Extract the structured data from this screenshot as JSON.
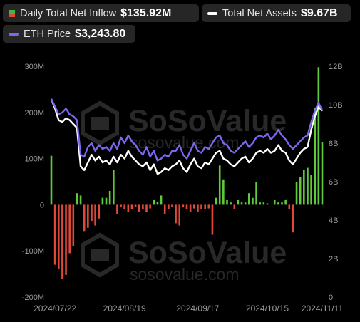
{
  "legend": {
    "inflow": {
      "label": "Daily Total Net Inflow",
      "value": "$135.92M",
      "swatch_top": "#3dba3d",
      "swatch_bottom": "#e0493a"
    },
    "assets": {
      "label": "Total Net Assets",
      "value": "$9.67B",
      "swatch": "#ffffff"
    },
    "eth": {
      "label": "ETH Price",
      "value": "$3,243.80",
      "swatch": "#7b68ee"
    }
  },
  "watermark": {
    "text": "SoSoValue",
    "url": "sosovalue.com"
  },
  "chart_data": {
    "type": "bar",
    "x_tick_labels": [
      "2024/07/22",
      "2024/08/19",
      "2024/09/17",
      "2024/10/15",
      "2024/11/11"
    ],
    "x_tick_indices": [
      1,
      20,
      40,
      59,
      77
    ],
    "y_left": {
      "ticks": [
        "300M",
        "200M",
        "100M",
        "0",
        "-100M",
        "-200M"
      ],
      "range": [
        -200,
        300
      ],
      "unit": "M"
    },
    "y_right": {
      "ticks": [
        "12B",
        "10B",
        "8B",
        "6B",
        "4B",
        "2B",
        "0"
      ],
      "range": [
        0,
        12
      ],
      "unit": "B"
    },
    "colors": {
      "positive": "#5fcb3c",
      "negative": "#e0493a",
      "net_assets": "#ffffff",
      "eth_price": "#7b68ee"
    },
    "series": [
      {
        "kind": "bar",
        "axis": "left",
        "values": [
          106,
          -130,
          -140,
          -160,
          -152,
          -105,
          -90,
          25,
          20,
          -57,
          -50,
          -35,
          -45,
          -30,
          15,
          15,
          30,
          75,
          -20,
          -5,
          -10,
          -15,
          -10,
          -5,
          -15,
          -10,
          -15,
          -8,
          10,
          6,
          20,
          -20,
          -10,
          -5,
          -40,
          -45,
          -5,
          -10,
          -15,
          -8,
          -15,
          -10,
          -10,
          -8,
          -65,
          15,
          85,
          55,
          10,
          5,
          -10,
          10,
          5,
          5,
          25,
          15,
          50,
          5,
          5,
          3,
          0,
          10,
          5,
          5,
          10,
          -10,
          -60,
          50,
          60,
          75,
          80,
          65,
          210,
          298,
          136
        ]
      },
      {
        "name": "Total Net Assets",
        "kind": "line",
        "axis": "right",
        "values": [
          10.3,
          9.8,
          9.2,
          9.1,
          9.3,
          9.2,
          9.0,
          8.8,
          6.8,
          6.6,
          7.0,
          7.4,
          7.1,
          7.3,
          7.0,
          7.1,
          6.9,
          7.3,
          7.0,
          7.4,
          7.2,
          7.6,
          7.3,
          7.1,
          6.9,
          6.8,
          7.0,
          6.6,
          6.9,
          6.4,
          6.5,
          6.7,
          6.6,
          6.8,
          6.9,
          7.1,
          6.7,
          6.5,
          6.9,
          7.2,
          6.8,
          6.7,
          7.0,
          6.9,
          7.2,
          7.5,
          7.6,
          7.2,
          7.1,
          6.9,
          6.8,
          7.0,
          7.2,
          7.3,
          7.0,
          7.2,
          7.5,
          7.6,
          7.5,
          7.7,
          7.5,
          7.6,
          7.9,
          7.6,
          7.5,
          7.1,
          6.9,
          7.2,
          7.5,
          7.7,
          7.8,
          8.7,
          9.4,
          9.9,
          9.67
        ]
      },
      {
        "name": "ETH Price",
        "kind": "line",
        "axis": "right",
        "values": [
          10.3,
          9.9,
          9.5,
          9.6,
          9.8,
          9.5,
          9.4,
          9.2,
          7.4,
          7.3,
          7.8,
          8.0,
          7.6,
          7.9,
          7.7,
          7.8,
          7.6,
          8.0,
          7.7,
          8.3,
          8.0,
          8.4,
          8.1,
          7.9,
          7.6,
          7.4,
          7.8,
          7.3,
          7.6,
          7.1,
          7.2,
          7.4,
          7.3,
          7.6,
          7.6,
          7.9,
          7.4,
          7.2,
          7.6,
          8.0,
          7.6,
          7.5,
          7.8,
          7.7,
          8.0,
          8.3,
          8.4,
          8.0,
          7.9,
          7.6,
          7.5,
          7.7,
          7.9,
          8.1,
          7.8,
          8.0,
          8.3,
          8.4,
          8.3,
          8.5,
          8.2,
          8.4,
          8.7,
          8.4,
          8.2,
          7.9,
          7.7,
          7.9,
          8.1,
          8.3,
          8.4,
          9.1,
          9.7,
          10.1,
          9.7
        ]
      }
    ]
  }
}
